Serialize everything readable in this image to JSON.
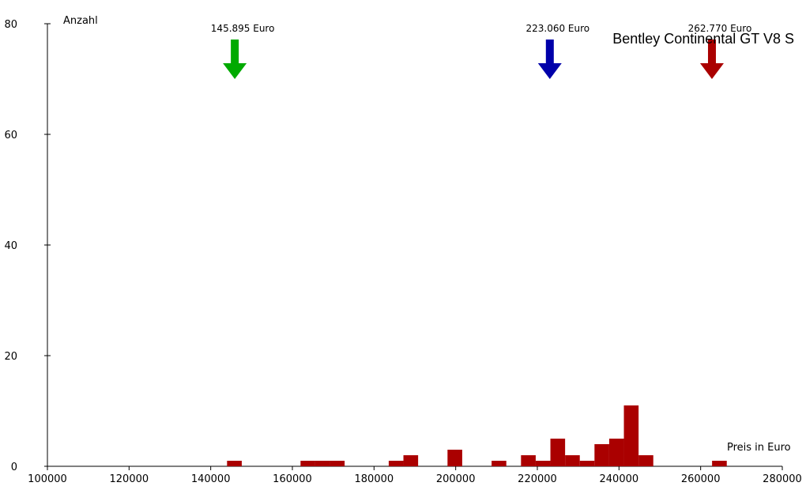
{
  "chart_data": {
    "type": "bar",
    "title": "Bentley Continental GT V8 S",
    "xlabel": "Preis in Euro",
    "ylabel": "Anzahl",
    "xlim": [
      100000,
      280000
    ],
    "ylim": [
      0,
      80
    ],
    "x_ticks": [
      "100000",
      "120000",
      "140000",
      "160000",
      "180000",
      "200000",
      "220000",
      "240000",
      "260000",
      "280000"
    ],
    "y_ticks": [
      "0",
      "20",
      "40",
      "60",
      "80"
    ],
    "bin_width": 3600,
    "bar_color": "#aa0000",
    "bins": [
      {
        "x": 144000,
        "count": 1
      },
      {
        "x": 162000,
        "count": 1
      },
      {
        "x": 165600,
        "count": 1
      },
      {
        "x": 169200,
        "count": 1
      },
      {
        "x": 183600,
        "count": 1
      },
      {
        "x": 187200,
        "count": 2
      },
      {
        "x": 198000,
        "count": 3
      },
      {
        "x": 208800,
        "count": 1
      },
      {
        "x": 216000,
        "count": 2
      },
      {
        "x": 219600,
        "count": 1
      },
      {
        "x": 223200,
        "count": 5
      },
      {
        "x": 226800,
        "count": 2
      },
      {
        "x": 230400,
        "count": 1
      },
      {
        "x": 234000,
        "count": 4
      },
      {
        "x": 237600,
        "count": 5
      },
      {
        "x": 241200,
        "count": 11
      },
      {
        "x": 244800,
        "count": 2
      },
      {
        "x": 262800,
        "count": 1
      }
    ],
    "markers": [
      {
        "label": "145.895 Euro",
        "value": 145895,
        "color": "#00aa00"
      },
      {
        "label": "223.060 Euro",
        "value": 223060,
        "color": "#0000aa"
      },
      {
        "label": "262.770 Euro",
        "value": 262770,
        "color": "#aa0000"
      }
    ]
  }
}
